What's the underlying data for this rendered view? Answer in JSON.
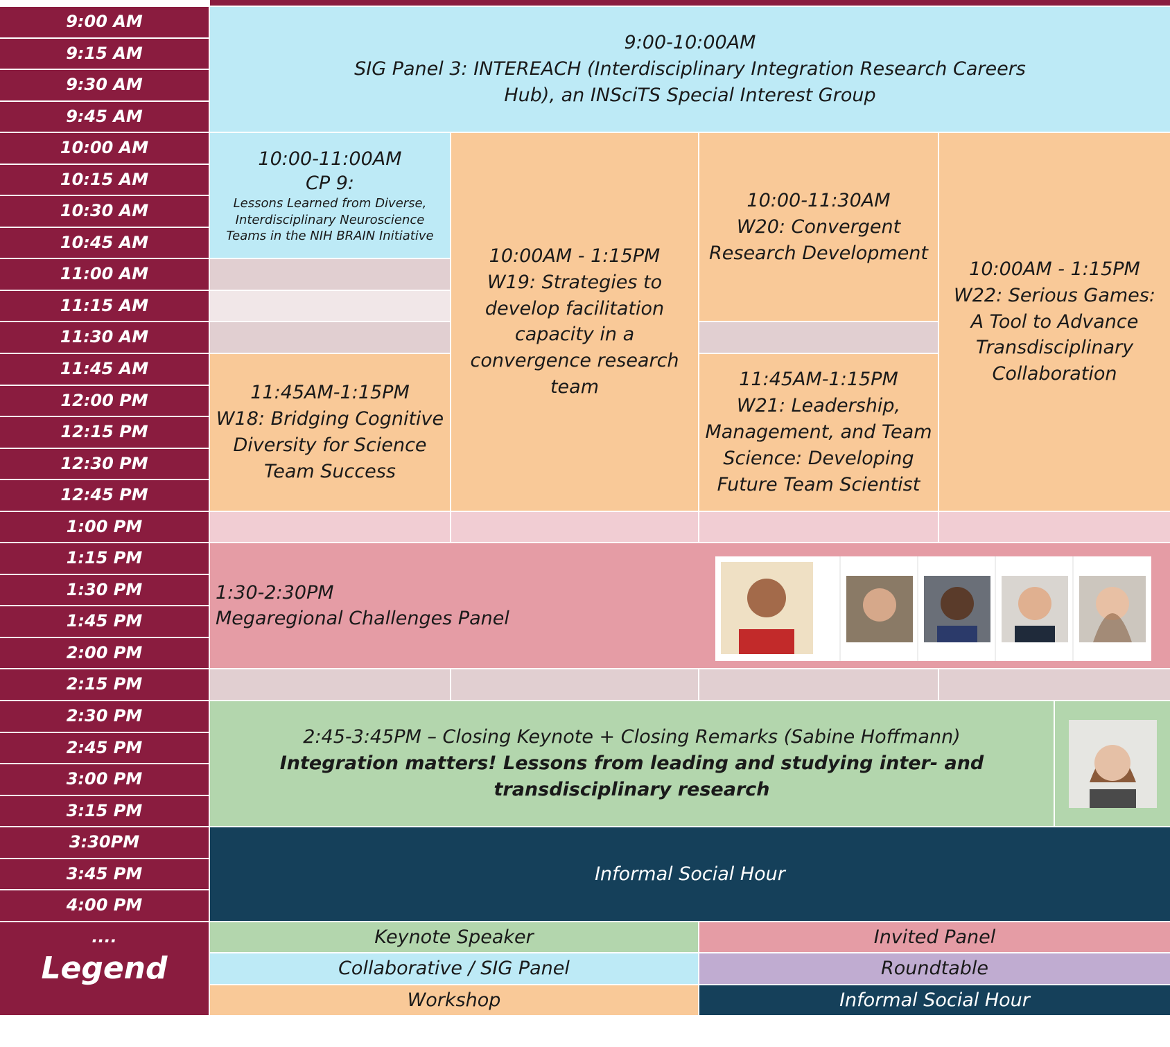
{
  "times": [
    "9:00 AM",
    "9:15 AM",
    "9:30 AM",
    "9:45 AM",
    "10:00 AM",
    "10:15 AM",
    "10:30 AM",
    "10:45 AM",
    "11:00 AM",
    "11:15 AM",
    "11:30 AM",
    "11:45 AM",
    "12:00 PM",
    "12:15 PM",
    "12:30 PM",
    "12:45 PM",
    "1:00 PM",
    "1:15 PM",
    "1:30 PM",
    "1:45 PM",
    "2:00 PM",
    "2:15 PM",
    "2:30 PM",
    "2:45 PM",
    "3:00 PM",
    "3:15 PM",
    "3:30PM",
    "3:45 PM",
    "4:00 PM",
    "...."
  ],
  "events": {
    "sig_panel": {
      "time": "9:00-10:00AM",
      "title": "SIG Panel 3: INTEREACH (Interdisciplinary Integration Research Careers Hub), an INSciTS Special Interest Group"
    },
    "cp9": {
      "time": "10:00-11:00AM",
      "code": "CP 9:",
      "title": "Lessons Learned from Diverse, Interdisciplinary Neuroscience Teams in the NIH BRAIN Initiative"
    },
    "w18": {
      "time": "11:45AM-1:15PM",
      "title": "W18: Bridging Cognitive Diversity for Science Team Success"
    },
    "w19": {
      "time": "10:00AM - 1:15PM",
      "title": "W19: Strategies to develop facilitation capacity in a convergence research team"
    },
    "w20": {
      "time": "10:00-11:30AM",
      "title": "W20: Convergent Research Development"
    },
    "w21": {
      "time": "11:45AM-1:15PM",
      "title": "W21: Leadership, Management, and Team Science: Developing Future Team Scientist"
    },
    "w22": {
      "time": "10:00AM - 1:15PM",
      "title": "W22: Serious Games: A Tool to Advance Transdisciplinary Collaboration"
    },
    "panel": {
      "time": "1:30-2:30PM",
      "title": "Megaregional Challenges Panel"
    },
    "keynote": {
      "time": "2:45-3:45PM – Closing Keynote + Closing Remarks (Sabine Hoffmann)",
      "title": "Integration matters! Lessons from leading and studying inter- and transdisciplinary research"
    },
    "social": {
      "title": "Informal Social Hour"
    }
  },
  "legend": {
    "title": "Legend",
    "items": [
      "Keynote Speaker",
      "Invited Panel",
      "Collaborative / SIG Panel",
      "Roundtable",
      "Workshop",
      "Informal Social Hour"
    ]
  }
}
